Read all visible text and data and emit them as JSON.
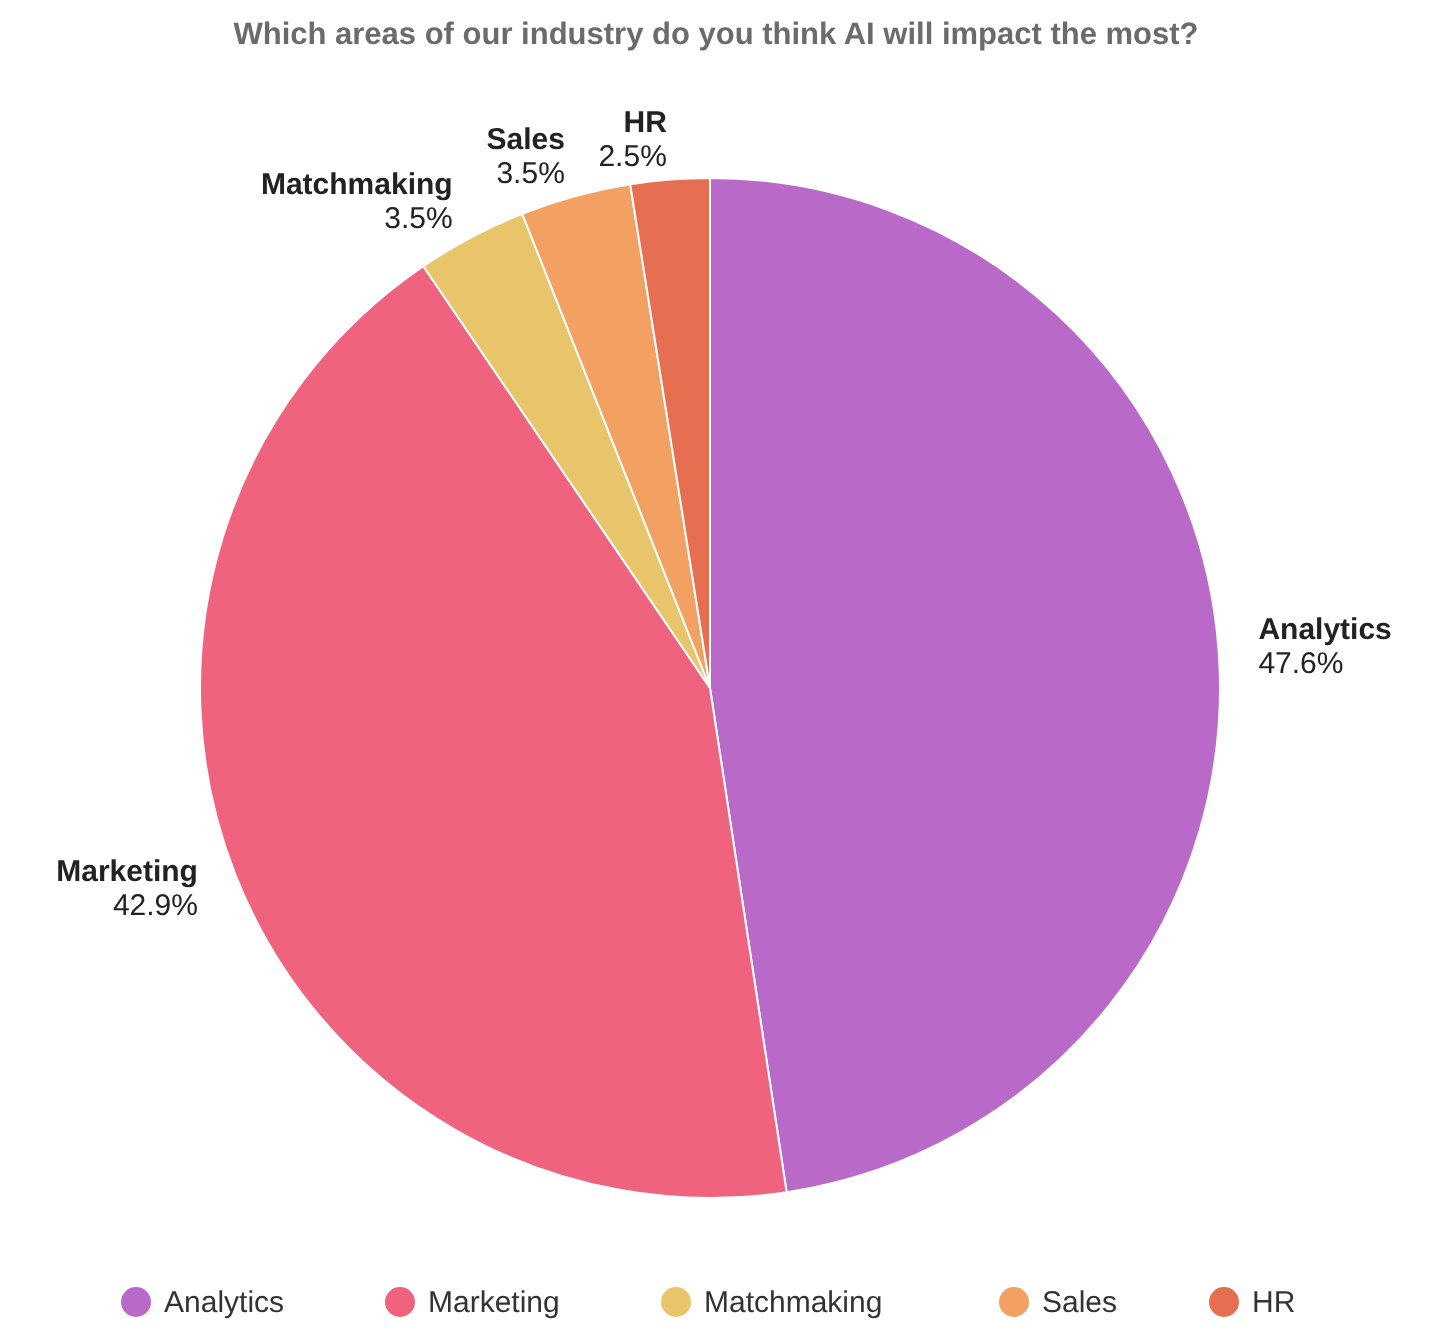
{
  "chart_data": {
    "type": "pie",
    "title": "Which areas of our industry do you think AI will impact the most?",
    "categories": [
      "Analytics",
      "Marketing",
      "Matchmaking",
      "Sales",
      "HR"
    ],
    "values": [
      47.6,
      42.9,
      3.5,
      3.5,
      2.5
    ],
    "value_labels": [
      "47.6%",
      "42.9%",
      "3.5%",
      "3.5%",
      "2.5%"
    ],
    "colors": [
      "#b96ac9",
      "#f0637f",
      "#e8c46a",
      "#f2a162",
      "#e66f52"
    ],
    "legend": "bottom"
  }
}
